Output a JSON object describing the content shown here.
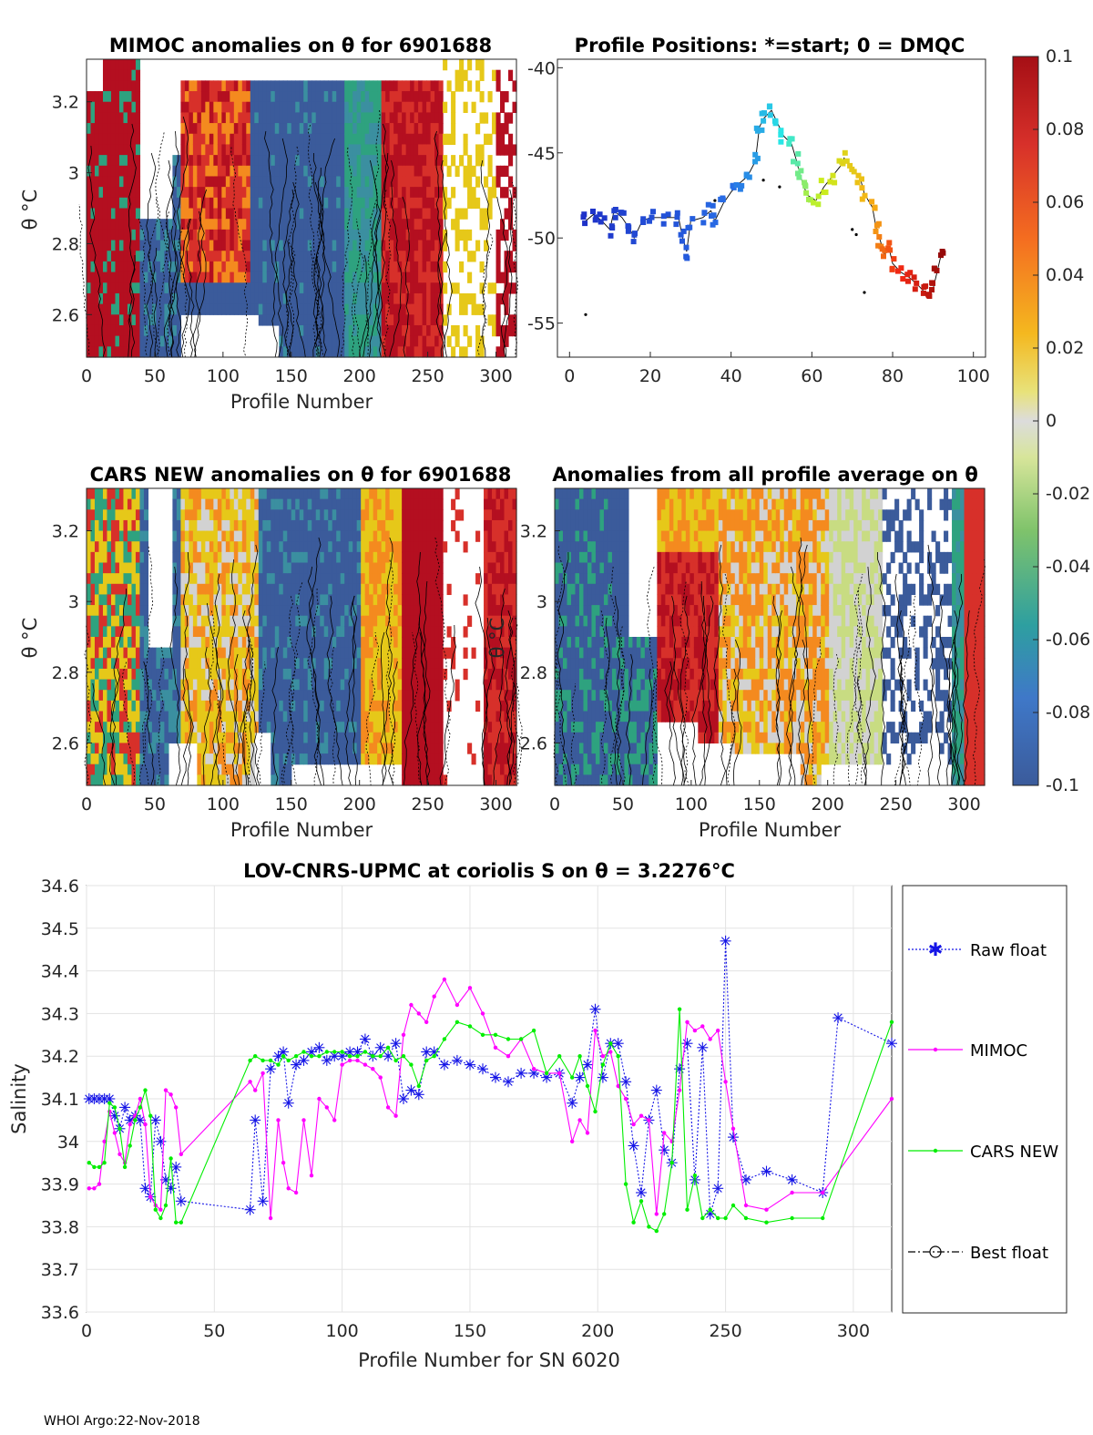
{
  "colors": {
    "dark_red": "#b40f20",
    "red": "#d7302a",
    "orange": "#f48a1f",
    "yellow": "#e6c819",
    "grey": "#d2d2d2",
    "yellowgreen": "#c8dc82",
    "green": "#2ea27f",
    "teal": "#3b8fa0",
    "blue": "#3b5b9b",
    "raw_float": "#1414e6",
    "mimoc": "#ff00ff",
    "cars_new": "#00ee00",
    "best_float": "#000000"
  },
  "anomaly_panels": [
    {
      "title": "MIMOC anomalies on θ  for 6901688",
      "xlabel": "Profile Number",
      "ylabel": "θ °C",
      "x_ticks": [
        "0",
        "50",
        "100",
        "150",
        "200",
        "250",
        "300"
      ],
      "y_ticks": [
        "3.2",
        "3",
        "2.8",
        "2.6"
      ],
      "xlim": [
        0,
        315
      ],
      "ylim": [
        2.48,
        3.32
      ]
    },
    {
      "title": "CARS NEW anomalies on θ for 6901688",
      "xlabel": "Profile Number",
      "ylabel": "θ °C",
      "x_ticks": [
        "0",
        "50",
        "100",
        "150",
        "200",
        "250",
        "300"
      ],
      "y_ticks": [
        "3.2",
        "3",
        "2.8",
        "2.6"
      ],
      "xlim": [
        0,
        315
      ],
      "ylim": [
        2.48,
        3.32
      ]
    },
    {
      "title": "Anomalies from all profile average on θ",
      "xlabel": "Profile Number",
      "ylabel": "θ °C",
      "x_ticks": [
        "0",
        "50",
        "100",
        "150",
        "200",
        "250",
        "300"
      ],
      "y_ticks": [
        "3.2",
        "3",
        "2.8",
        "2.6"
      ],
      "xlim": [
        0,
        315
      ],
      "ylim": [
        2.48,
        3.32
      ]
    }
  ],
  "positions_panel": {
    "title": "Profile Positions: *=start; 0 = DMQC",
    "x_ticks": [
      "0",
      "20",
      "40",
      "60",
      "80",
      "100"
    ],
    "y_ticks": [
      "-40",
      "-45",
      "-50",
      "-55"
    ],
    "xlim": [
      -3,
      103
    ],
    "ylim": [
      -57,
      -39.5
    ]
  },
  "colorbar": {
    "ticks": [
      "0.1",
      "0.08",
      "0.06",
      "0.04",
      "0.02",
      "0",
      "-0.02",
      "-0.04",
      "-0.06",
      "-0.08",
      "-0.1"
    ],
    "range": [
      -0.1,
      0.1
    ]
  },
  "chart_data": {
    "type": "line",
    "title": "LOV-CNRS-UPMC at coriolis S on θ = 3.2276°C",
    "xlabel": "Profile Number for SN 6020",
    "ylabel": "Salinity",
    "xlim": [
      0,
      315
    ],
    "ylim": [
      33.6,
      34.6
    ],
    "x_ticks": [
      "0",
      "50",
      "100",
      "150",
      "200",
      "250",
      "300"
    ],
    "y_ticks": [
      "34.6",
      "34.5",
      "34.4",
      "34.3",
      "34.2",
      "34.1",
      "34",
      "33.9",
      "33.8",
      "33.7",
      "33.6"
    ],
    "legend_position": "right",
    "series": [
      {
        "name": "Raw float",
        "style": "dotted-star",
        "x": [
          1,
          3,
          5,
          7,
          9,
          11,
          13,
          15,
          17,
          19,
          21,
          23,
          25,
          27,
          29,
          31,
          33,
          35,
          37,
          64,
          66,
          69,
          72,
          75,
          77,
          79,
          82,
          85,
          88,
          91,
          94,
          97,
          100,
          103,
          106,
          109,
          112,
          115,
          118,
          121,
          124,
          127,
          130,
          133,
          136,
          140,
          145,
          150,
          155,
          160,
          165,
          170,
          175,
          180,
          185,
          190,
          193,
          196,
          199,
          202,
          205,
          208,
          211,
          214,
          217,
          220,
          223,
          226,
          229,
          232,
          235,
          238,
          241,
          244,
          247,
          250,
          253,
          258,
          266,
          276,
          288,
          294,
          315
        ],
        "y": [
          34.1,
          34.1,
          34.1,
          34.1,
          34.1,
          34.06,
          34.03,
          34.08,
          34.05,
          34.06,
          34.05,
          33.89,
          33.87,
          34.05,
          34.0,
          33.91,
          33.89,
          33.94,
          33.86,
          33.84,
          34.05,
          33.86,
          34.17,
          34.2,
          34.21,
          34.09,
          34.18,
          34.19,
          34.21,
          34.22,
          34.19,
          34.2,
          34.2,
          34.21,
          34.21,
          34.24,
          34.2,
          34.22,
          34.2,
          34.23,
          34.1,
          34.12,
          34.11,
          34.21,
          34.21,
          34.18,
          34.19,
          34.18,
          34.17,
          34.15,
          34.14,
          34.16,
          34.16,
          34.15,
          34.16,
          34.09,
          34.15,
          34.18,
          34.31,
          34.15,
          34.23,
          34.23,
          34.14,
          33.99,
          33.88,
          34.05,
          34.12,
          33.98,
          33.95,
          34.17,
          34.23,
          33.91,
          34.22,
          33.83,
          33.89,
          34.47,
          34.01,
          33.91,
          33.93,
          33.91,
          33.88,
          34.29,
          34.23
        ]
      },
      {
        "name": "MIMOC",
        "style": "line-dot",
        "x": [
          1,
          3,
          5,
          7,
          9,
          11,
          13,
          15,
          17,
          19,
          21,
          23,
          25,
          27,
          29,
          31,
          33,
          35,
          37,
          64,
          66,
          69,
          72,
          75,
          77,
          79,
          82,
          85,
          88,
          91,
          94,
          97,
          100,
          103,
          106,
          109,
          112,
          115,
          118,
          121,
          124,
          127,
          130,
          133,
          136,
          140,
          145,
          150,
          155,
          160,
          165,
          170,
          175,
          180,
          185,
          190,
          193,
          196,
          199,
          202,
          205,
          208,
          211,
          214,
          217,
          220,
          223,
          226,
          229,
          232,
          235,
          238,
          241,
          244,
          247,
          250,
          253,
          258,
          266,
          276,
          288,
          315
        ],
        "y": [
          33.89,
          33.89,
          33.9,
          34.0,
          34.07,
          34.02,
          33.97,
          33.95,
          34.04,
          34.06,
          34.1,
          34.04,
          33.87,
          33.85,
          33.84,
          34.12,
          34.11,
          34.08,
          33.97,
          34.14,
          34.12,
          34.16,
          33.82,
          34.05,
          33.95,
          33.89,
          33.88,
          34.05,
          33.92,
          34.1,
          34.08,
          34.05,
          34.18,
          34.19,
          34.19,
          34.18,
          34.17,
          34.15,
          34.08,
          34.06,
          34.25,
          34.32,
          34.3,
          34.28,
          34.34,
          34.38,
          34.32,
          34.36,
          34.3,
          34.22,
          34.2,
          34.24,
          34.17,
          34.16,
          34.16,
          34.0,
          34.05,
          34.02,
          34.26,
          34.2,
          34.21,
          34.13,
          34.1,
          34.04,
          34.06,
          34.05,
          33.83,
          34.02,
          34.0,
          34.12,
          34.28,
          34.26,
          34.27,
          34.24,
          34.26,
          34.14,
          34.03,
          33.85,
          33.84,
          33.88,
          33.88,
          34.1
        ]
      },
      {
        "name": "CARS NEW",
        "style": "line-dot",
        "x": [
          1,
          3,
          5,
          7,
          9,
          11,
          13,
          15,
          17,
          19,
          21,
          23,
          25,
          27,
          29,
          31,
          33,
          35,
          37,
          64,
          66,
          69,
          72,
          75,
          77,
          79,
          82,
          85,
          88,
          91,
          94,
          97,
          100,
          103,
          106,
          109,
          112,
          115,
          118,
          121,
          124,
          127,
          130,
          133,
          136,
          140,
          145,
          150,
          155,
          160,
          165,
          170,
          175,
          180,
          185,
          190,
          193,
          196,
          199,
          202,
          205,
          208,
          211,
          214,
          217,
          220,
          223,
          226,
          229,
          232,
          235,
          238,
          241,
          244,
          247,
          250,
          253,
          258,
          266,
          276,
          288,
          315
        ],
        "y": [
          33.95,
          33.94,
          33.94,
          33.95,
          34.09,
          34.08,
          34.03,
          33.94,
          33.99,
          34.05,
          34.08,
          34.12,
          34.06,
          33.84,
          33.82,
          33.85,
          33.96,
          33.81,
          33.81,
          34.19,
          34.2,
          34.19,
          34.19,
          34.18,
          34.2,
          34.19,
          34.2,
          34.21,
          34.2,
          34.2,
          34.21,
          34.21,
          34.21,
          34.2,
          34.2,
          34.21,
          34.2,
          34.2,
          34.22,
          34.19,
          34.2,
          34.18,
          34.13,
          34.19,
          34.2,
          34.24,
          34.28,
          34.27,
          34.25,
          34.25,
          34.24,
          34.24,
          34.26,
          34.16,
          34.2,
          34.15,
          34.2,
          34.13,
          34.07,
          34.18,
          34.23,
          34.2,
          33.9,
          33.81,
          33.86,
          33.8,
          33.79,
          33.83,
          33.95,
          34.31,
          33.84,
          33.92,
          33.82,
          33.84,
          33.82,
          33.82,
          33.85,
          33.82,
          33.81,
          33.82,
          33.82,
          34.28
        ]
      },
      {
        "name": "Best float",
        "style": "dashdot-circle",
        "x": [],
        "y": []
      }
    ]
  },
  "footer": "WHOI Argo:22-Nov-2018"
}
